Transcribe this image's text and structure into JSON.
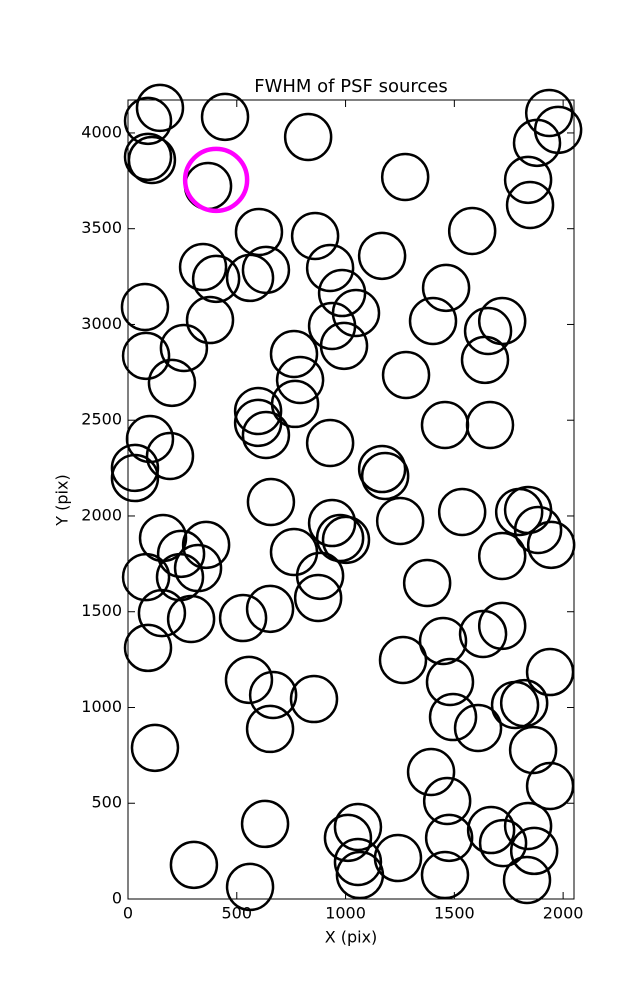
{
  "chart_data": {
    "type": "scatter",
    "title": "FWHM of PSF sources",
    "x_label": "X (pix)",
    "y_label": "Y (pix)",
    "xlim": [
      0,
      2050
    ],
    "ylim": [
      0,
      4172
    ],
    "xticks": [
      0,
      500,
      1000,
      1500,
      2000
    ],
    "yticks": [
      0,
      500,
      1000,
      1500,
      2000,
      2500,
      3000,
      3500,
      4000
    ],
    "series": [
      {
        "color": "#000000",
        "x": [
          92,
          147,
          446,
          92,
          110,
          368,
          828,
          1274,
          1936,
          1977,
          1880,
          1839,
          1848,
          602,
          860,
          1582,
          1168,
          345,
          405,
          634,
          561,
          929,
          984,
          78,
          377,
          1048,
          1462,
          1402,
          1720,
          1655,
          1641,
          938,
          993,
          83,
          257,
          202,
          763,
          791,
          768,
          1278,
          598,
          598,
          634,
          101,
          1457,
          1664,
          929,
          193,
          32,
          32,
          1168,
          1182,
          657,
          1251,
          1536,
          1798,
          1839,
          1885,
          1945,
          938,
          975,
          1002,
          161,
          359,
          244,
          322,
          239,
          763,
          1720,
          83,
          883,
          1375,
          874,
          653,
          156,
          290,
          529,
          1448,
          1632,
          1720,
          92,
          1264,
          556,
          1480,
          667,
          855,
          653,
          1779,
          1821,
          1940,
          1494,
          1609,
          1862,
          124,
          1393,
          1940,
          1467,
          630,
          1057,
          1011,
          1476,
          1669,
          1724,
          1839,
          1867,
          1241,
          1057,
          1066,
          303,
          561,
          1457,
          1834
        ],
        "values": [
          4063,
          4131,
          4084,
          3875,
          3859,
          3723,
          3979,
          3770,
          4104,
          4016,
          3948,
          3755,
          3624,
          3483,
          3462,
          3488,
          3358,
          3300,
          3238,
          3285,
          3243,
          3295,
          3164,
          3091,
          3023,
          3060,
          3191,
          3018,
          3018,
          2966,
          2815,
          2992,
          2888,
          2836,
          2877,
          2695,
          2846,
          2710,
          2585,
          2736,
          2548,
          2486,
          2423,
          2402,
          2475,
          2475,
          2381,
          2313,
          2251,
          2198,
          2245,
          2209,
          2073,
          1974,
          2021,
          2021,
          2031,
          1927,
          1849,
          1963,
          1885,
          1875,
          1885,
          1849,
          1802,
          1728,
          1681,
          1812,
          1791,
          1681,
          1687,
          1650,
          1572,
          1515,
          1493,
          1462,
          1467,
          1347,
          1384,
          1426,
          1311,
          1248,
          1144,
          1133,
          1065,
          1044,
          888,
          1013,
          1023,
          1185,
          950,
          893,
          778,
          789,
          663,
          590,
          512,
          392,
          376,
          319,
          319,
          360,
          292,
          381,
          251,
          214,
          193,
          125,
          178,
          63,
          125,
          99
        ]
      },
      {
        "color": "#ff00ff",
        "x": [
          405
        ],
        "values": [
          3755
        ]
      }
    ]
  }
}
